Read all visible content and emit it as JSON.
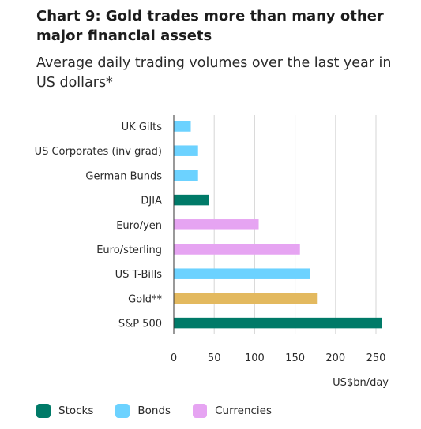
{
  "header": {
    "title": "Chart 9: Gold trades more than many other major financial assets",
    "subtitle": "Average daily trading volumes over the last year in US dollars*"
  },
  "colors": {
    "Stocks": "#007a68",
    "Bonds": "#6cd2ff",
    "Currencies": "#e6a4f2",
    "Gold": "#e3b95f",
    "grid": "#d6d6d6",
    "axis": "#333333"
  },
  "chart_data": {
    "type": "bar",
    "orientation": "horizontal",
    "categories": [
      "UK Gilts",
      "US Corporates (inv grad)",
      "German Bunds",
      "DJIA",
      "Euro/yen",
      "Euro/sterling",
      "US T-Bills",
      "Gold**",
      "S&P 500"
    ],
    "values": [
      21,
      30,
      30,
      43,
      105,
      156,
      168,
      177,
      257
    ],
    "groups": [
      "Bonds",
      "Bonds",
      "Bonds",
      "Stocks",
      "Currencies",
      "Currencies",
      "Bonds",
      "Gold",
      "Stocks"
    ],
    "xlim": [
      0,
      260
    ],
    "xticks": [
      0,
      50,
      100,
      150,
      200,
      250
    ],
    "xlabel": "US$bn/day",
    "grid": "vertical",
    "legend_position": "bottom-left"
  },
  "legend": [
    {
      "label": "Stocks",
      "key": "Stocks"
    },
    {
      "label": "Bonds",
      "key": "Bonds"
    },
    {
      "label": "Currencies",
      "key": "Currencies"
    }
  ]
}
